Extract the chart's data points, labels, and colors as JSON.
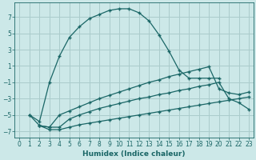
{
  "xlabel": "Humidex (Indice chaleur)",
  "bg_color": "#cce8e8",
  "grid_color": "#aacccc",
  "line_color": "#1a6666",
  "xlim": [
    -0.5,
    23.5
  ],
  "ylim": [
    -7.8,
    8.8
  ],
  "xticks": [
    0,
    1,
    2,
    3,
    4,
    5,
    6,
    7,
    8,
    9,
    10,
    11,
    12,
    13,
    14,
    15,
    16,
    17,
    18,
    19,
    20,
    21,
    22,
    23
  ],
  "yticks": [
    -7,
    -5,
    -3,
    -1,
    1,
    3,
    5,
    7
  ],
  "curve1_x": [
    1,
    2,
    3,
    4,
    5,
    6,
    7,
    8,
    9,
    10,
    11,
    12,
    13,
    14,
    15,
    16,
    17,
    18,
    19,
    20
  ],
  "curve1_y": [
    -5.0,
    -5.8,
    -1.0,
    2.2,
    4.5,
    5.8,
    6.8,
    7.3,
    7.8,
    8.0,
    8.0,
    7.5,
    6.5,
    4.8,
    2.8,
    0.5,
    -0.5,
    -0.5,
    -0.5,
    -0.5
  ],
  "curve2_x": [
    1,
    2,
    3,
    4,
    5,
    6,
    7,
    8,
    9,
    10,
    11,
    12,
    13,
    14,
    15,
    16,
    17,
    18,
    19,
    20,
    21,
    22,
    23
  ],
  "curve2_y": [
    -5.0,
    -6.3,
    -6.5,
    -5.0,
    -4.5,
    -4.0,
    -3.5,
    -3.0,
    -2.6,
    -2.2,
    -1.8,
    -1.4,
    -1.0,
    -0.7,
    -0.3,
    0.0,
    0.3,
    0.6,
    0.9,
    -1.8,
    -2.3,
    -2.5,
    -2.2
  ],
  "curve3_x": [
    2,
    3,
    4,
    5,
    6,
    7,
    8,
    9,
    10,
    11,
    12,
    13,
    14,
    15,
    16,
    17,
    18,
    19,
    20,
    21,
    22,
    23
  ],
  "curve3_y": [
    -6.3,
    -6.5,
    -6.5,
    -5.5,
    -5.0,
    -4.6,
    -4.2,
    -3.9,
    -3.6,
    -3.3,
    -3.0,
    -2.8,
    -2.5,
    -2.3,
    -2.0,
    -1.8,
    -1.5,
    -1.3,
    -1.0,
    -3.0,
    -3.5,
    -4.3
  ],
  "curve4_x": [
    2,
    3,
    4,
    5,
    6,
    7,
    8,
    9,
    10,
    11,
    12,
    13,
    14,
    15,
    16,
    17,
    18,
    19,
    20,
    21,
    22,
    23
  ],
  "curve4_y": [
    -6.3,
    -6.8,
    -6.8,
    -6.5,
    -6.2,
    -6.0,
    -5.8,
    -5.6,
    -5.4,
    -5.2,
    -5.0,
    -4.8,
    -4.6,
    -4.4,
    -4.2,
    -4.0,
    -3.8,
    -3.6,
    -3.4,
    -3.2,
    -3.0,
    -2.8
  ]
}
